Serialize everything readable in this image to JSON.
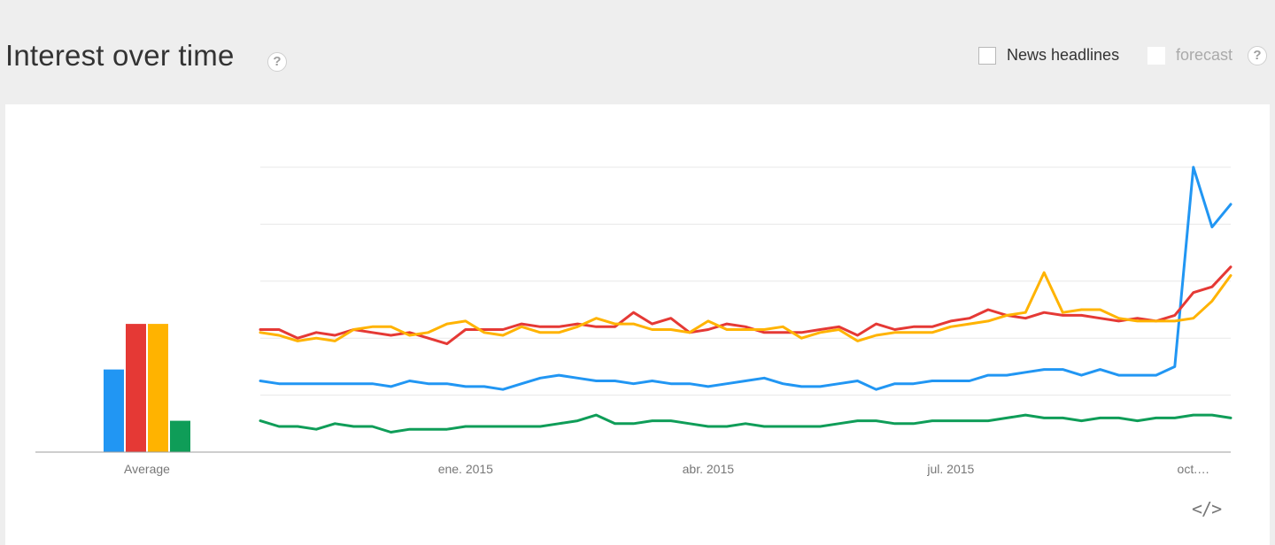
{
  "header": {
    "title": "Interest over time",
    "help_glyph": "?",
    "news_label": "News headlines",
    "forecast_label": "forecast",
    "embed_glyph": "</>"
  },
  "icons": {
    "help": "help-circle-icon",
    "embed": "embed-code-icon"
  },
  "chart_data": [
    {
      "type": "bar",
      "categories": [
        "Average"
      ],
      "series": [
        {
          "color": "#2196f3",
          "values": [
            29
          ]
        },
        {
          "color": "#e53935",
          "values": [
            45
          ]
        },
        {
          "color": "#ffb300",
          "values": [
            45
          ]
        },
        {
          "color": "#0f9d58",
          "values": [
            11
          ]
        }
      ],
      "ylim": [
        0,
        100
      ],
      "xlabel": "",
      "ylabel": ""
    },
    {
      "type": "line",
      "x_tick_labels": [
        {
          "label": "ene. 2015",
          "index": 11
        },
        {
          "label": "abr. 2015",
          "index": 24
        },
        {
          "label": "jul. 2015",
          "index": 37
        },
        {
          "label": "oct.…",
          "index": 50
        }
      ],
      "ylim": [
        0,
        100
      ],
      "grid": true,
      "series": [
        {
          "color": "#2196f3",
          "values": [
            25,
            24,
            24,
            24,
            24,
            24,
            24,
            23,
            25,
            24,
            24,
            23,
            23,
            22,
            24,
            26,
            27,
            26,
            25,
            25,
            24,
            25,
            24,
            24,
            23,
            24,
            25,
            26,
            24,
            23,
            23,
            24,
            25,
            22,
            24,
            24,
            25,
            25,
            25,
            27,
            27,
            28,
            29,
            29,
            27,
            29,
            27,
            27,
            27,
            30,
            100,
            79,
            87
          ]
        },
        {
          "color": "#e53935",
          "values": [
            43,
            43,
            40,
            42,
            41,
            43,
            42,
            41,
            42,
            40,
            38,
            43,
            43,
            43,
            45,
            44,
            44,
            45,
            44,
            44,
            49,
            45,
            47,
            42,
            43,
            45,
            44,
            42,
            42,
            42,
            43,
            44,
            41,
            45,
            43,
            44,
            44,
            46,
            47,
            50,
            48,
            47,
            49,
            48,
            48,
            47,
            46,
            47,
            46,
            48,
            56,
            58,
            65
          ]
        },
        {
          "color": "#ffb300",
          "values": [
            42,
            41,
            39,
            40,
            39,
            43,
            44,
            44,
            41,
            42,
            45,
            46,
            42,
            41,
            44,
            42,
            42,
            44,
            47,
            45,
            45,
            43,
            43,
            42,
            46,
            43,
            43,
            43,
            44,
            40,
            42,
            43,
            39,
            41,
            42,
            42,
            42,
            44,
            45,
            46,
            48,
            49,
            63,
            49,
            50,
            50,
            47,
            46,
            46,
            46,
            47,
            53,
            62
          ]
        },
        {
          "color": "#0f9d58",
          "values": [
            11,
            9,
            9,
            8,
            10,
            9,
            9,
            7,
            8,
            8,
            8,
            9,
            9,
            9,
            9,
            9,
            10,
            11,
            13,
            10,
            10,
            11,
            11,
            10,
            9,
            9,
            10,
            9,
            9,
            9,
            9,
            10,
            11,
            11,
            10,
            10,
            11,
            11,
            11,
            11,
            12,
            13,
            12,
            12,
            11,
            12,
            12,
            11,
            12,
            12,
            13,
            13,
            12
          ]
        }
      ]
    }
  ]
}
